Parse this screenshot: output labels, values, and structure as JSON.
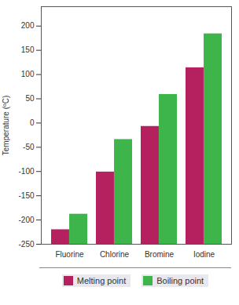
{
  "chart_data": {
    "type": "bar",
    "categories": [
      "Fluorine",
      "Chlorine",
      "Bromine",
      "Iodine"
    ],
    "series": [
      {
        "name": "Melting point",
        "color": "#b5215f",
        "values": [
          -220,
          -101,
          -7,
          114
        ]
      },
      {
        "name": "Boiling point",
        "color": "#3db54a",
        "values": [
          -188,
          -34,
          59,
          184
        ]
      }
    ],
    "y_label": "Temperature (ºC)",
    "ylim": [
      -250,
      240
    ],
    "yticks": [
      -250,
      -200,
      -150,
      -100,
      -50,
      0,
      50,
      100,
      150,
      200
    ],
    "grid": false,
    "legend": "bottom"
  }
}
